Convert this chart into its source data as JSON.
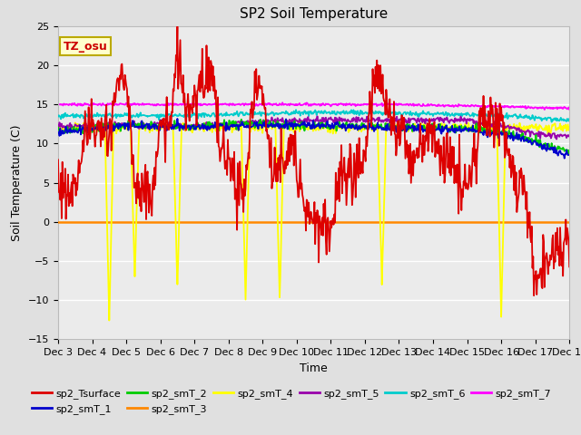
{
  "title": "SP2 Soil Temperature",
  "xlabel": "Time",
  "ylabel": "Soil Temperature (C)",
  "ylim": [
    -15,
    25
  ],
  "xlim": [
    0,
    360
  ],
  "x_tick_labels": [
    "Dec 3",
    "Dec 4",
    "Dec 5",
    "Dec 6",
    "Dec 7",
    "Dec 8",
    "Dec 9",
    "Dec 10",
    "Dec 11",
    "Dec 12",
    "Dec 13",
    "Dec 14",
    "Dec 15",
    "Dec 16",
    "Dec 17",
    "Dec 18"
  ],
  "x_tick_positions": [
    0,
    24,
    48,
    72,
    96,
    120,
    144,
    168,
    192,
    216,
    240,
    264,
    288,
    312,
    336,
    360
  ],
  "y_ticks": [
    -15,
    -10,
    -5,
    0,
    5,
    10,
    15,
    20,
    25
  ],
  "fig_bg_color": "#e0e0e0",
  "plot_bg_color": "#ebebeb",
  "grid_color": "#ffffff",
  "colors": {
    "sp2_Tsurface": "#dd0000",
    "sp2_smT_1": "#0000cc",
    "sp2_smT_2": "#00cc00",
    "sp2_smT_3": "#ff8800",
    "sp2_smT_4": "#ffff00",
    "sp2_smT_5": "#9900aa",
    "sp2_smT_6": "#00cccc",
    "sp2_smT_7": "#ff00ff"
  },
  "annotation_text": "TZ_osu",
  "title_fontsize": 11,
  "axis_label_fontsize": 9,
  "tick_fontsize": 8
}
